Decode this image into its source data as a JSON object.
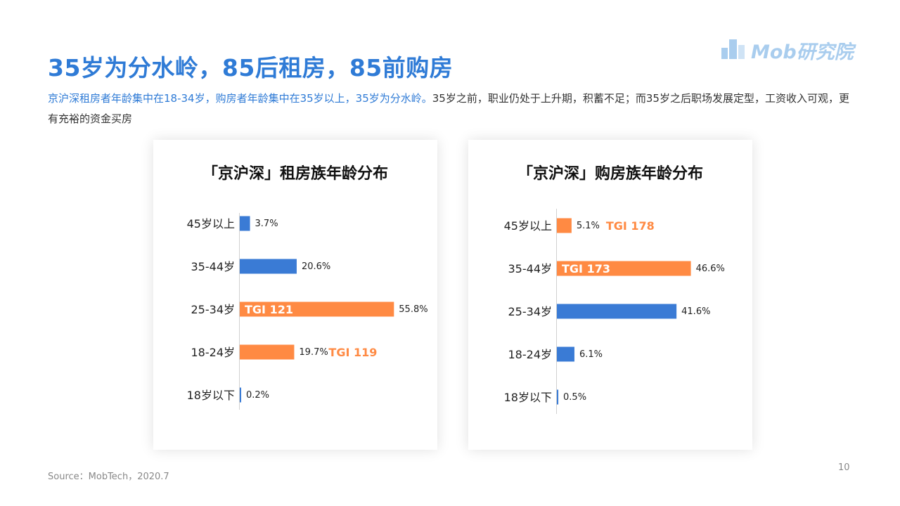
{
  "title": "35岁为分水岭，85后租房，85前购房",
  "subtitle": {
    "highlight": "京沪深租房者年龄集中在18-34岁，购房者年龄集中在35岁以上，35岁为分水岭。",
    "rest": "35岁之前，职业仍处于上升期，积蓄不足；而35岁之后职场发展定型，工资收入可观，更有充裕的资金买房"
  },
  "logo": {
    "text": "Mob研究院"
  },
  "colors": {
    "blue": "#3a7bd5",
    "orange": "#ff8a43",
    "axis": "#d0d0d0",
    "accent_text": "#2f7bd6"
  },
  "chart_data": [
    {
      "type": "bar",
      "orientation": "horizontal",
      "title": "「京沪深」租房族年龄分布",
      "categories": [
        "45岁以上",
        "35-44岁",
        "25-34岁",
        "18-24岁",
        "18岁以下"
      ],
      "values": [
        3.7,
        20.6,
        55.8,
        19.7,
        0.2
      ],
      "value_labels": [
        "3.7%",
        "20.6%",
        "55.8%",
        "19.7%",
        "0.2%"
      ],
      "highlight": [
        false,
        false,
        true,
        true,
        false
      ],
      "tgi_labels": [
        "",
        "",
        "TGI 121",
        "TGI 119",
        ""
      ]
    },
    {
      "type": "bar",
      "orientation": "horizontal",
      "title": "「京沪深」购房族年龄分布",
      "categories": [
        "45岁以上",
        "35-44岁",
        "25-34岁",
        "18-24岁",
        "18岁以下"
      ],
      "values": [
        5.1,
        46.6,
        41.6,
        6.1,
        0.5
      ],
      "value_labels": [
        "5.1%",
        "46.6%",
        "41.6%",
        "6.1%",
        "0.5%"
      ],
      "highlight": [
        true,
        true,
        false,
        false,
        false
      ],
      "tgi_labels": [
        "TGI 178",
        "TGI 173",
        "",
        "",
        ""
      ]
    }
  ],
  "source": "Source：MobTech，2020.7",
  "page_number": "10"
}
